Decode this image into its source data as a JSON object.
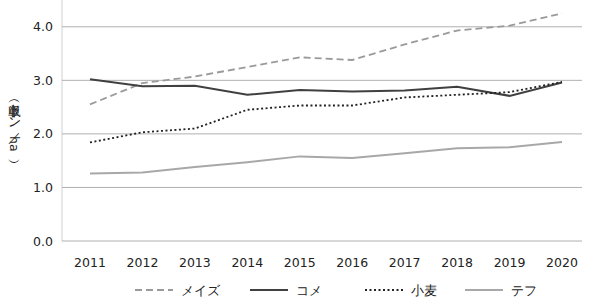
{
  "chart_data": {
    "type": "line",
    "y_label": "単収（トン／ha）",
    "categories": [
      "2011",
      "2012",
      "2013",
      "2014",
      "2015",
      "2016",
      "2017",
      "2018",
      "2019",
      "2020"
    ],
    "series": [
      {
        "name": "メイズ",
        "color": "#9a9a9a",
        "line_style": "dashed",
        "values": [
          2.55,
          2.95,
          3.07,
          3.25,
          3.43,
          3.38,
          3.67,
          3.93,
          4.02,
          4.25
        ]
      },
      {
        "name": "コメ",
        "color": "#404040",
        "line_style": "solid",
        "values": [
          3.02,
          2.89,
          2.9,
          2.73,
          2.82,
          2.79,
          2.81,
          2.88,
          2.71,
          2.96
        ]
      },
      {
        "name": "小麦",
        "color": "#222222",
        "line_style": "dotted",
        "values": [
          1.84,
          2.03,
          2.1,
          2.45,
          2.53,
          2.53,
          2.68,
          2.73,
          2.78,
          2.97
        ]
      },
      {
        "name": "テフ",
        "color": "#a8a8a8",
        "line_style": "solid",
        "values": [
          1.26,
          1.28,
          1.38,
          1.47,
          1.58,
          1.55,
          1.64,
          1.73,
          1.75,
          1.85
        ]
      }
    ],
    "ylim": [
      0,
      4.5
    ],
    "yticks": [
      {
        "value": 0,
        "label": "0.0"
      },
      {
        "value": 1,
        "label": "1.0"
      },
      {
        "value": 2,
        "label": "2.0"
      },
      {
        "value": 3,
        "label": "3.0"
      },
      {
        "value": 4,
        "label": "4.0"
      }
    ],
    "grid": true,
    "legend": "bottom"
  }
}
